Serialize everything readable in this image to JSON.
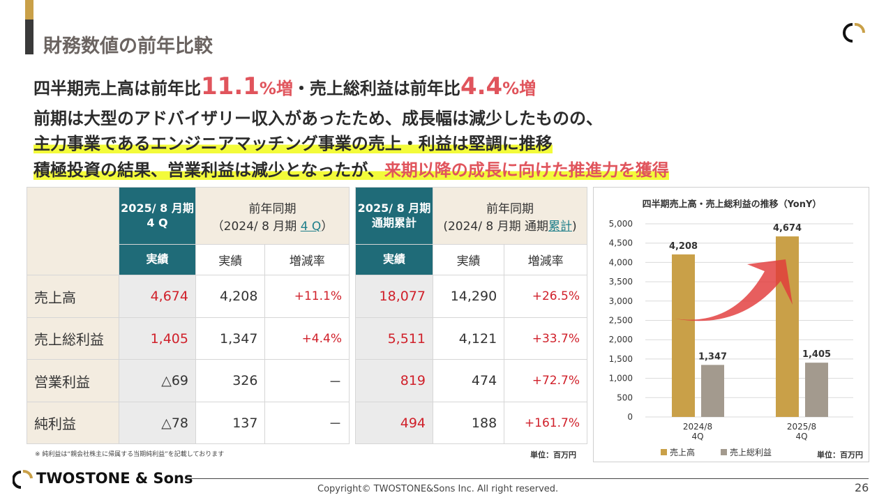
{
  "header": {
    "title": "財務数値の前年比較"
  },
  "headline": {
    "l1a": "四半期売上高は前年比",
    "l1b": "11.1",
    "l1c": "%増",
    "l1d": "・売上総利益は前年比",
    "l1e": "4.4",
    "l1f": "%増",
    "l2": "前期は大型のアドバイザリー収入があったため、成長幅は減少したものの、",
    "l3": "主力事業であるエンジニアマッチング事業の売上・利益は堅調に推移",
    "l4a": "積極投資の結果、営業利益は減少となったが、",
    "l4b": "来期以降の成長に向けた推進力を獲得"
  },
  "table_q": {
    "h_current": [
      "2025/ 8 月期",
      "4 Q"
    ],
    "h_prev": [
      "前年同期",
      "（2024/ 8 月期 ",
      "4 Q",
      "）"
    ],
    "sub": [
      "実績",
      "実績",
      "増減率"
    ],
    "rows": [
      {
        "label": "売上高",
        "cur": "4,674",
        "prev": "4,208",
        "rate": "+11.1%"
      },
      {
        "label": "売上総利益",
        "cur": "1,405",
        "prev": "1,347",
        "rate": "+4.4%"
      },
      {
        "label": "営業利益",
        "cur": "△69",
        "prev": "326",
        "rate": "－"
      },
      {
        "label": "純利益",
        "cur": "△78",
        "prev": "137",
        "rate": "－"
      }
    ]
  },
  "table_y": {
    "h_current": [
      "2025/ 8 月期",
      "通期累計"
    ],
    "h_prev": [
      "前年同期",
      "(2024/ 8 月期 通期",
      "累計",
      ")"
    ],
    "sub": [
      "実績",
      "実績",
      "増減率"
    ],
    "rows": [
      {
        "cur": "18,077",
        "prev": "14,290",
        "rate": "+26.5%"
      },
      {
        "cur": "5,511",
        "prev": "4,121",
        "rate": "+33.7%"
      },
      {
        "cur": "819",
        "prev": "474",
        "rate": "+72.7%"
      },
      {
        "cur": "494",
        "prev": "188",
        "rate": "+161.7%"
      }
    ]
  },
  "note": "※ 純利益は“親会社株主に帰属する当期純利益”を記載しております",
  "unit": "単位：百万円",
  "chart_data": {
    "type": "bar",
    "title": "四半期売上高・売上総利益の推移（YonY）",
    "categories": [
      "2024/8\n4Q",
      "2025/8\n4Q"
    ],
    "series": [
      {
        "name": "売上高",
        "values": [
          4208,
          4674
        ],
        "color": "#c9a048"
      },
      {
        "name": "売上総利益",
        "values": [
          1347,
          1405
        ],
        "color": "#a39a8e"
      }
    ],
    "ylim": [
      0,
      5000
    ],
    "yticks": [
      "0",
      "500",
      "1,000",
      "1,500",
      "2,000",
      "2,500",
      "3,000",
      "3,500",
      "4,000",
      "4,500",
      "5,000"
    ],
    "labels": [
      [
        "4,208",
        "4,674"
      ],
      [
        "1,347",
        "1,405"
      ]
    ],
    "unit": "単位：百万円",
    "legend": "bottom-left"
  },
  "footer": {
    "brand": "TWOSTONE & Sons",
    "copyright": "Copyright© TWOSTONE&Sons Inc. All right reserved.",
    "page": "26"
  }
}
